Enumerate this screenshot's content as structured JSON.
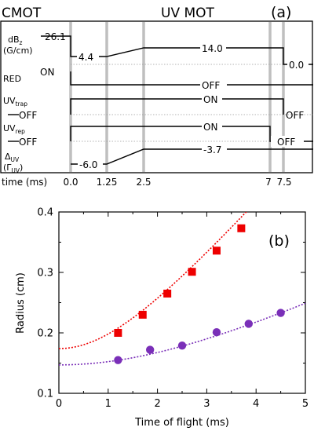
{
  "panel_a": {
    "label": "(a)",
    "phase_left": "CMOT",
    "phase_right": "UV MOT",
    "xlabel": "time (ms)",
    "time_ticks": [
      "0.0",
      "1.25",
      "2.5",
      "7",
      "7.5"
    ],
    "rows": [
      {
        "name": "dbz",
        "label_main": "dB",
        "label_sub": "z",
        "label_line2": "(G/cm)",
        "values": [
          "26.1",
          "4.4",
          "14.0",
          "0.0"
        ]
      },
      {
        "name": "red",
        "label_main": "RED",
        "label_sub": "",
        "label_line2": "",
        "values": [
          "ON",
          "OFF"
        ]
      },
      {
        "name": "uvtrap",
        "label_main": "UV",
        "label_sub": "trap",
        "label_line2": "",
        "values": [
          "OFF",
          "ON",
          "OFF"
        ]
      },
      {
        "name": "uvrep",
        "label_main": "UV",
        "label_sub": "rep",
        "label_line2": "",
        "values": [
          "OFF",
          "ON",
          "OFF"
        ]
      },
      {
        "name": "delta",
        "label_main": "Δ",
        "label_sub": "UV",
        "label_line2": "(Γ",
        "label_line2_sub": "UV",
        "label_line2_end": ")",
        "values": [
          "-6.0",
          "-3.7"
        ]
      }
    ]
  },
  "panel_b": {
    "label": "(b)",
    "colors": {
      "red_series": "#ee0000",
      "purple_series": "#7a2fb8",
      "red_fit": "#ee0000",
      "purple_fit": "#8a40c8"
    }
  },
  "chart_data": {
    "type": "scatter",
    "xlabel": "Time of flight (ms)",
    "ylabel": "Radius (cm)",
    "xlim": [
      0,
      5
    ],
    "ylim": [
      0.1,
      0.4
    ],
    "xticks": [
      "0",
      "1",
      "2",
      "3",
      "4",
      "5"
    ],
    "yticks": [
      "0.1",
      "0.2",
      "0.3",
      "0.4"
    ],
    "series": [
      {
        "marker": "square",
        "color": "#ee0000",
        "x": [
          1.2,
          1.7,
          2.2,
          2.7,
          3.2,
          3.7
        ],
        "y": [
          0.2,
          0.23,
          0.265,
          0.301,
          0.336,
          0.373
        ],
        "fit": {
          "sigma0": 0.174,
          "slope": 0.0948
        }
      },
      {
        "marker": "circle",
        "color": "#7a2fb8",
        "x": [
          1.2,
          1.85,
          2.5,
          3.2,
          3.85,
          4.5
        ],
        "y": [
          0.155,
          0.172,
          0.179,
          0.201,
          0.215,
          0.233
        ],
        "fit": {
          "sigma0": 0.147,
          "slope": 0.0402
        }
      }
    ]
  }
}
